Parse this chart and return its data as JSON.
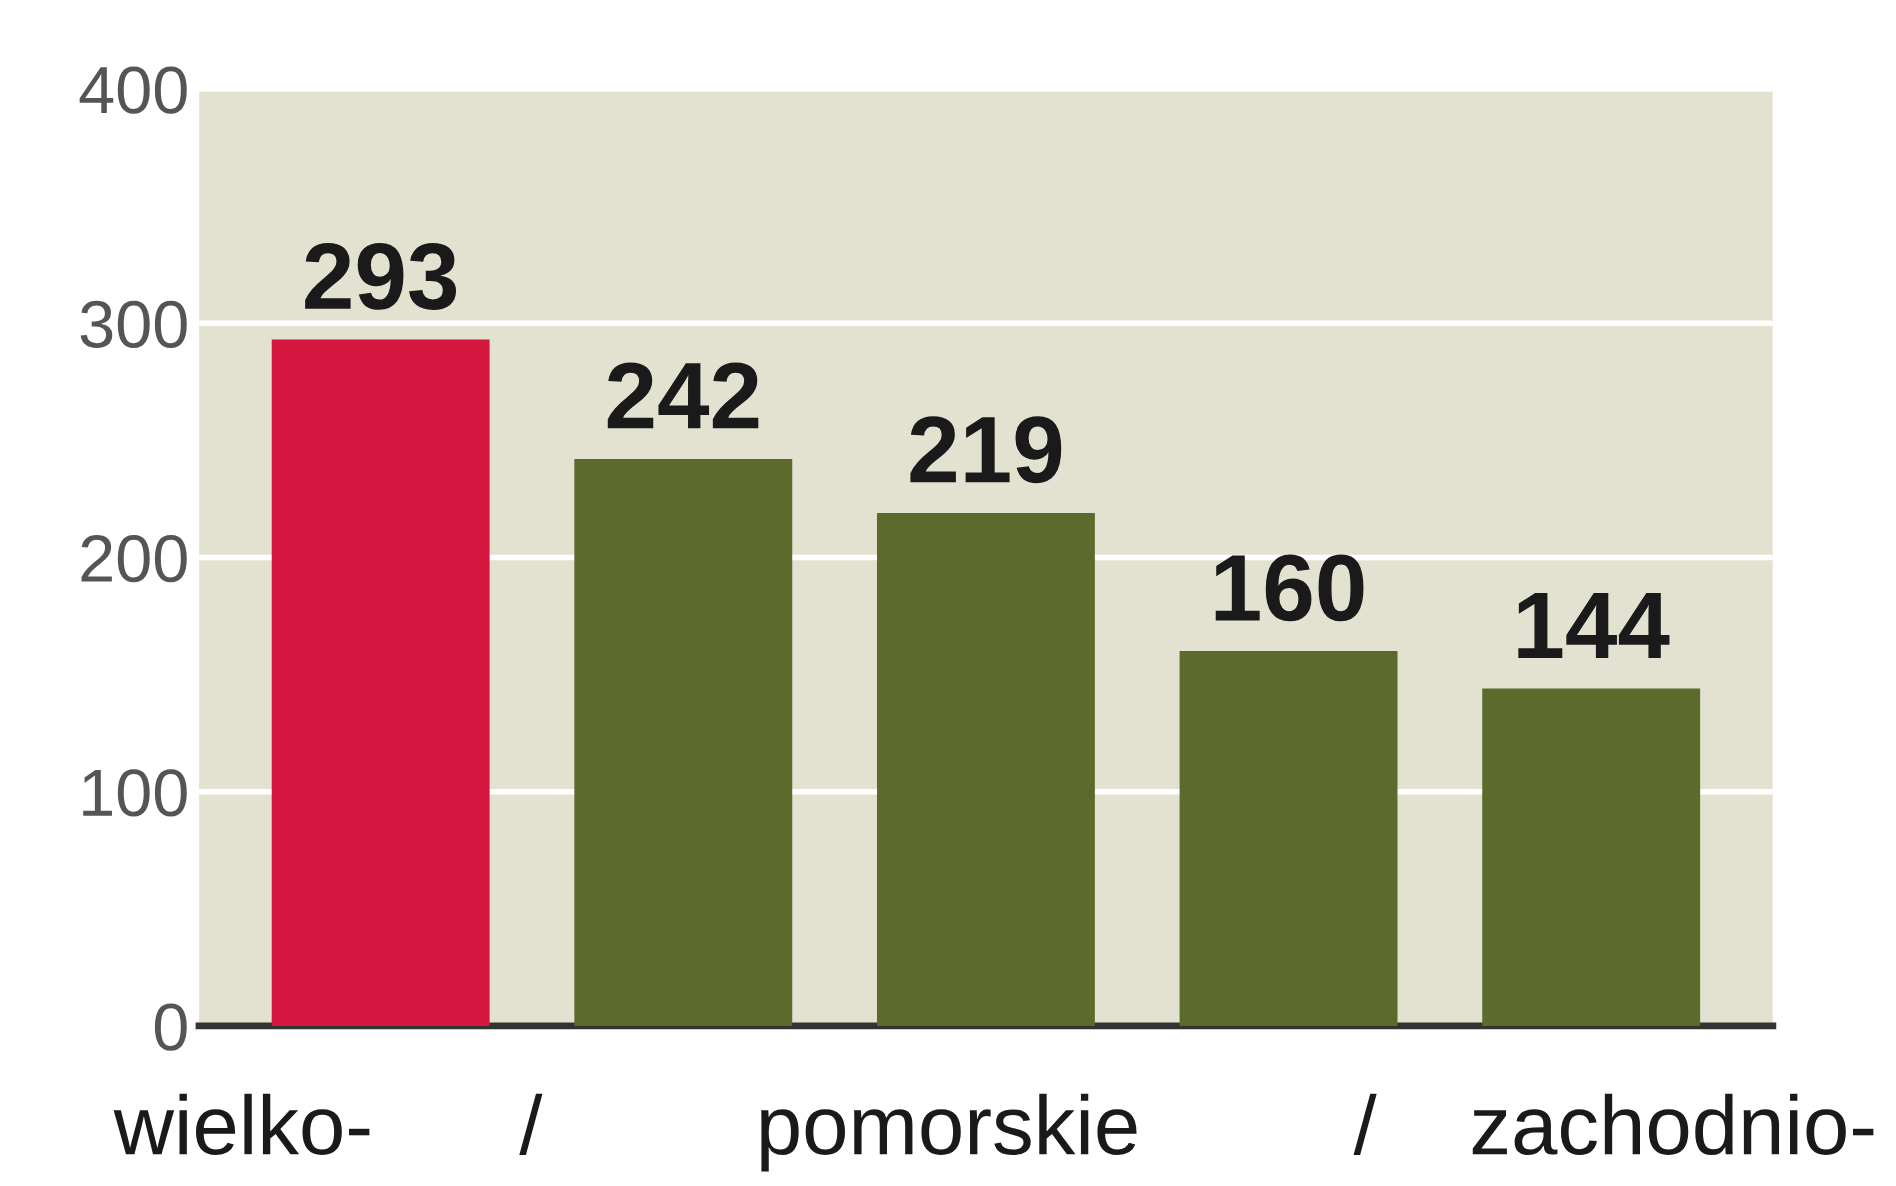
{
  "chart_data": {
    "type": "bar",
    "categories": [
      null,
      null,
      null,
      null,
      null
    ],
    "values": [
      293,
      242,
      219,
      160,
      144
    ],
    "colors": [
      "#d3173f",
      "#5c6a2c",
      "#5c6a2c",
      "#5c6a2c",
      "#5c6a2c"
    ],
    "ylim": [
      0,
      400
    ],
    "yticks": [
      0,
      100,
      200,
      300,
      400
    ],
    "grid": "y",
    "data_labels": true,
    "annotations": [
      "wielko-",
      "/",
      "pomorskie",
      "/",
      "zachodnio-"
    ]
  }
}
